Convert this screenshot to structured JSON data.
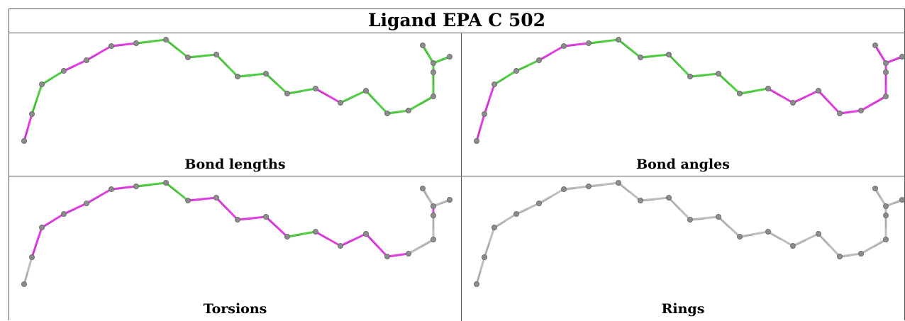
{
  "title": "Ligand EPA C 502",
  "colors": {
    "green": "#4fce41",
    "magenta": "#e03ee0",
    "grey": "#bdbdbd",
    "atom": "#8c8c8c",
    "atom_edge": "#666666"
  },
  "panels": [
    {
      "caption": "Bond lengths",
      "bond_colors": [
        "magenta",
        "green",
        "green",
        "magenta",
        "magenta",
        "magenta",
        "green",
        "green",
        "green",
        "green",
        "green",
        "green",
        "green",
        "magenta",
        "green",
        "green",
        "green",
        "green",
        "green",
        "green",
        "green",
        "green",
        "green",
        "green",
        "green",
        "green"
      ]
    },
    {
      "caption": "Bond angles",
      "bond_colors": [
        "magenta",
        "magenta",
        "green",
        "green",
        "magenta",
        "magenta",
        "green",
        "green",
        "green",
        "green",
        "green",
        "green",
        "green",
        "magenta",
        "magenta",
        "magenta",
        "magenta",
        "magenta",
        "magenta",
        "magenta",
        "magenta",
        "magenta",
        "magenta",
        "magenta",
        "magenta",
        "magenta"
      ]
    },
    {
      "caption": "Torsions",
      "bond_colors": [
        "grey",
        "magenta",
        "magenta",
        "magenta",
        "magenta",
        "magenta",
        "green",
        "green",
        "magenta",
        "magenta",
        "magenta",
        "magenta",
        "green",
        "magenta",
        "magenta",
        "magenta",
        "magenta",
        "green",
        "green",
        "magenta",
        "magenta",
        "magenta",
        "grey",
        "grey",
        "grey",
        "grey"
      ]
    },
    {
      "caption": "Rings",
      "bond_colors": [
        "grey",
        "grey",
        "grey",
        "grey",
        "grey",
        "grey",
        "grey",
        "grey",
        "grey",
        "grey",
        "grey",
        "grey",
        "grey",
        "grey",
        "grey",
        "grey",
        "grey",
        "grey",
        "grey",
        "grey",
        "grey",
        "grey",
        "grey",
        "grey",
        "grey",
        "grey"
      ]
    }
  ]
}
